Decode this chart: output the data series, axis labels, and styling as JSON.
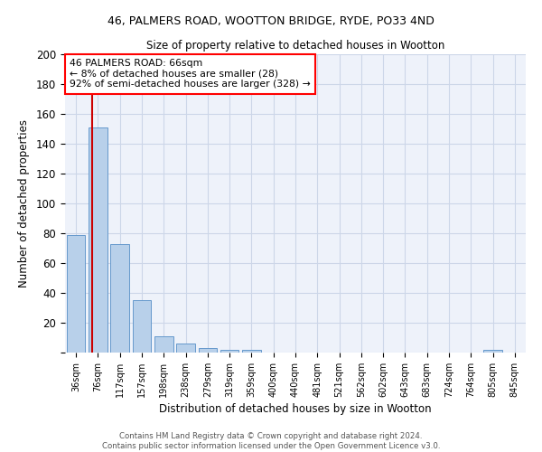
{
  "title1": "46, PALMERS ROAD, WOOTTON BRIDGE, RYDE, PO33 4ND",
  "title2": "Size of property relative to detached houses in Wootton",
  "xlabel": "Distribution of detached houses by size in Wootton",
  "ylabel": "Number of detached properties",
  "categories": [
    "36sqm",
    "76sqm",
    "117sqm",
    "157sqm",
    "198sqm",
    "238sqm",
    "279sqm",
    "319sqm",
    "359sqm",
    "400sqm",
    "440sqm",
    "481sqm",
    "521sqm",
    "562sqm",
    "602sqm",
    "643sqm",
    "683sqm",
    "724sqm",
    "764sqm",
    "805sqm",
    "845sqm"
  ],
  "values": [
    79,
    151,
    73,
    35,
    11,
    6,
    3,
    2,
    2,
    0,
    0,
    0,
    0,
    0,
    0,
    0,
    0,
    0,
    0,
    2,
    0
  ],
  "bar_color": "#b8d0ea",
  "bar_edge_color": "#6699cc",
  "red_line_color": "#cc0000",
  "grid_color": "#ccd6e8",
  "background_color": "#eef2fa",
  "ylim": [
    0,
    200
  ],
  "yticks": [
    0,
    20,
    40,
    60,
    80,
    100,
    120,
    140,
    160,
    180,
    200
  ],
  "property_line_label": "46 PALMERS ROAD: 66sqm",
  "annotation_line2": "← 8% of detached houses are smaller (28)",
  "annotation_line3": "92% of semi-detached houses are larger (328) →",
  "footnote1": "Contains HM Land Registry data © Crown copyright and database right 2024.",
  "footnote2": "Contains public sector information licensed under the Open Government Licence v3.0."
}
